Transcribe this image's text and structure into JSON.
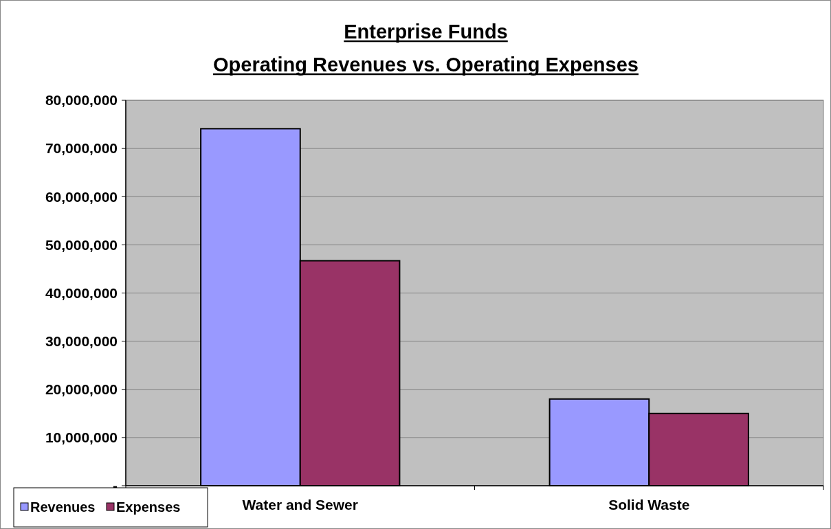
{
  "chart_data": {
    "type": "bar",
    "title": "Enterprise Funds",
    "subtitle": "Operating Revenues vs. Operating Expenses",
    "categories": [
      "Water and Sewer",
      "Solid Waste"
    ],
    "series": [
      {
        "name": "Revenues",
        "color": "#9999ff",
        "values": [
          74100000,
          18000000
        ]
      },
      {
        "name": "Expenses",
        "color": "#993366",
        "values": [
          46700000,
          15000000
        ]
      }
    ],
    "ylim": [
      0,
      80000000
    ],
    "yticks": [
      {
        "value": 0,
        "label": "-"
      },
      {
        "value": 10000000,
        "label": "10,000,000"
      },
      {
        "value": 20000000,
        "label": "20,000,000"
      },
      {
        "value": 30000000,
        "label": "30,000,000"
      },
      {
        "value": 40000000,
        "label": "40,000,000"
      },
      {
        "value": 50000000,
        "label": "50,000,000"
      },
      {
        "value": 60000000,
        "label": "60,000,000"
      },
      {
        "value": 70000000,
        "label": "70,000,000"
      },
      {
        "value": 80000000,
        "label": "80,000,000"
      }
    ],
    "grid": "y",
    "legend": "bottom left"
  }
}
